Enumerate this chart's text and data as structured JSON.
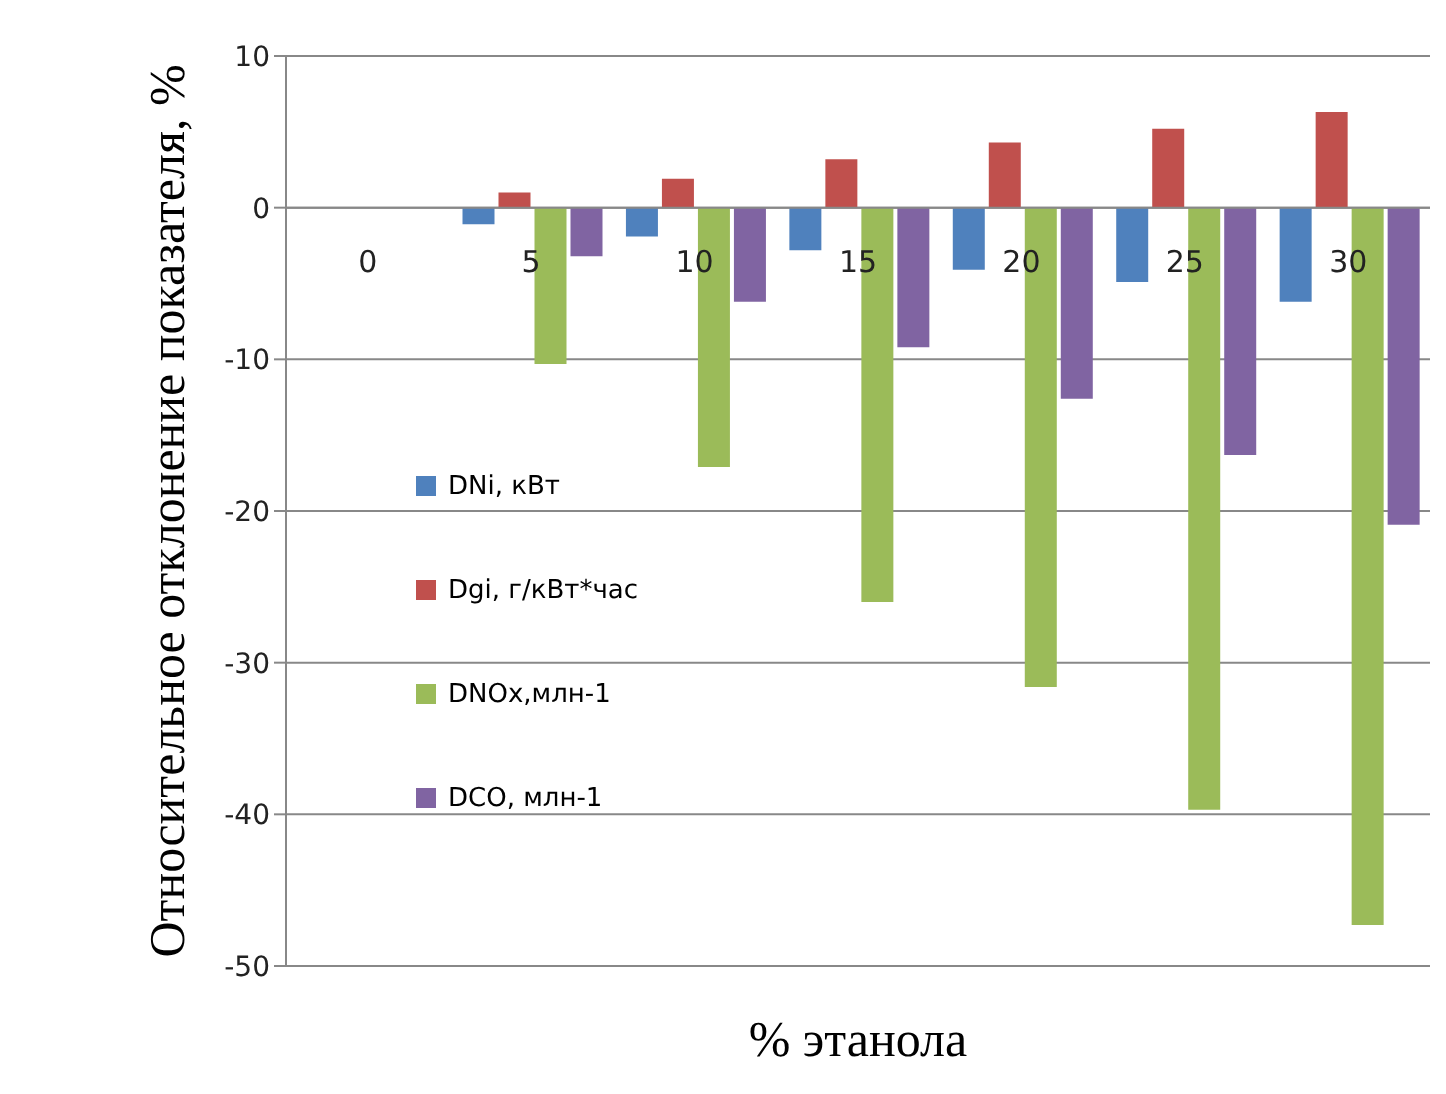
{
  "chart_data": {
    "type": "bar",
    "xlabel": "% этанола",
    "ylabel": "Относительное отклонение показателя, %",
    "categories": [
      "0",
      "5",
      "10",
      "15",
      "20",
      "25",
      "30"
    ],
    "series": [
      {
        "name": "DNi, кВт",
        "color": "#4f81bd",
        "values": [
          0,
          -1.1,
          -1.9,
          -2.8,
          -4.1,
          -4.9,
          -6.2
        ]
      },
      {
        "name": "Dgi, г/кВт*час",
        "color": "#c0504d",
        "values": [
          0,
          1.0,
          1.9,
          3.2,
          4.3,
          5.2,
          6.3
        ]
      },
      {
        "name": "DNOx,млн-1",
        "color": "#9bbb59",
        "values": [
          0,
          -10.3,
          -17.1,
          -26,
          -31.6,
          -39.7,
          -47.3
        ]
      },
      {
        "name": "DCO, млн-1",
        "color": "#8064a2",
        "values": [
          0,
          -3.2,
          -6.2,
          -9.2,
          -12.6,
          -16.3,
          -20.9
        ]
      }
    ],
    "ylim": [
      -50,
      10
    ],
    "yticks": [
      -50,
      -40,
      -30,
      -20,
      -10,
      0,
      10
    ],
    "grid": "y",
    "legend": "left"
  }
}
